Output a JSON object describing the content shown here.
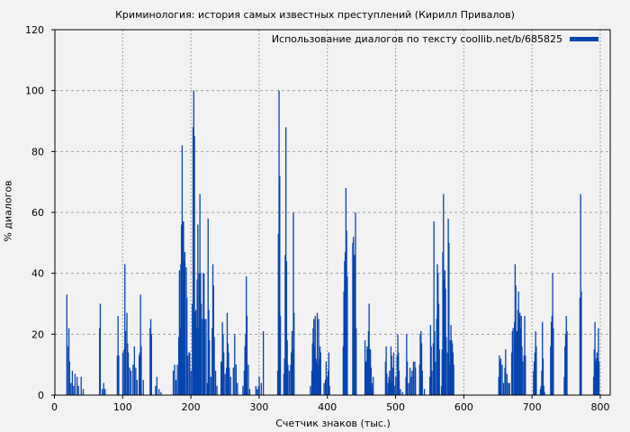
{
  "chart_data": {
    "type": "bar",
    "title": "Криминология: история самых известных преступлений (Кирилл Привалов)",
    "xlabel": "Счетчик знаков (тыс.)",
    "ylabel": "% диалогов",
    "xlim": [
      0,
      820
    ],
    "ylim": [
      0,
      120
    ],
    "xticks": [
      0,
      100,
      200,
      300,
      400,
      500,
      600,
      700,
      800
    ],
    "yticks": [
      0,
      20,
      40,
      60,
      80,
      100,
      120
    ],
    "grid": true,
    "legend_position": "upper right",
    "series": [
      {
        "name": "Использование диалогов по тексту coollib.net/b/685825",
        "color": "#0644ae",
        "points": [
          [
            18,
            33
          ],
          [
            19,
            16
          ],
          [
            21,
            22
          ],
          [
            22,
            11
          ],
          [
            24,
            4
          ],
          [
            26,
            8
          ],
          [
            28,
            3
          ],
          [
            30,
            7
          ],
          [
            33,
            6
          ],
          [
            35,
            3
          ],
          [
            39,
            6
          ],
          [
            42,
            2
          ],
          [
            66,
            22
          ],
          [
            67,
            30
          ],
          [
            70,
            2
          ],
          [
            72,
            4
          ],
          [
            74,
            2
          ],
          [
            92,
            13
          ],
          [
            93,
            26
          ],
          [
            94,
            13
          ],
          [
            100,
            14
          ],
          [
            102,
            15
          ],
          [
            103,
            43
          ],
          [
            104,
            21
          ],
          [
            106,
            27
          ],
          [
            107,
            17
          ],
          [
            108,
            14
          ],
          [
            110,
            9
          ],
          [
            112,
            8
          ],
          [
            115,
            10
          ],
          [
            117,
            16
          ],
          [
            119,
            9
          ],
          [
            121,
            5
          ],
          [
            124,
            13
          ],
          [
            125,
            14
          ],
          [
            126,
            33
          ],
          [
            127,
            16
          ],
          [
            130,
            5
          ],
          [
            140,
            22
          ],
          [
            141,
            25
          ],
          [
            142,
            20
          ],
          [
            148,
            3
          ],
          [
            150,
            6
          ],
          [
            153,
            2
          ],
          [
            156,
            1
          ],
          [
            174,
            8
          ],
          [
            176,
            10
          ],
          [
            178,
            5
          ],
          [
            180,
            10
          ],
          [
            182,
            19
          ],
          [
            183,
            41
          ],
          [
            184,
            22
          ],
          [
            185,
            43
          ],
          [
            186,
            56
          ],
          [
            187,
            82
          ],
          [
            188,
            57
          ],
          [
            189,
            57
          ],
          [
            190,
            44
          ],
          [
            191,
            47
          ],
          [
            193,
            42
          ],
          [
            194,
            32
          ],
          [
            195,
            13
          ],
          [
            197,
            14
          ],
          [
            198,
            14
          ],
          [
            200,
            8
          ],
          [
            202,
            30
          ],
          [
            203,
            88
          ],
          [
            204,
            100
          ],
          [
            205,
            85
          ],
          [
            206,
            27
          ],
          [
            207,
            28
          ],
          [
            208,
            22
          ],
          [
            209,
            38
          ],
          [
            210,
            56
          ],
          [
            211,
            22
          ],
          [
            212,
            40
          ],
          [
            213,
            66
          ],
          [
            214,
            40
          ],
          [
            215,
            30
          ],
          [
            217,
            25
          ],
          [
            218,
            40
          ],
          [
            219,
            40
          ],
          [
            220,
            25
          ],
          [
            222,
            25
          ],
          [
            224,
            4
          ],
          [
            225,
            58
          ],
          [
            226,
            28
          ],
          [
            227,
            18
          ],
          [
            229,
            6
          ],
          [
            231,
            22
          ],
          [
            232,
            43
          ],
          [
            233,
            36
          ],
          [
            234,
            19
          ],
          [
            236,
            8
          ],
          [
            238,
            3
          ],
          [
            244,
            11
          ],
          [
            245,
            11
          ],
          [
            246,
            24
          ],
          [
            247,
            20
          ],
          [
            248,
            14
          ],
          [
            250,
            7
          ],
          [
            252,
            9
          ],
          [
            253,
            27
          ],
          [
            254,
            17
          ],
          [
            255,
            14
          ],
          [
            256,
            9
          ],
          [
            258,
            6
          ],
          [
            262,
            9
          ],
          [
            264,
            20
          ],
          [
            266,
            10
          ],
          [
            268,
            4
          ],
          [
            276,
            3
          ],
          [
            278,
            8
          ],
          [
            279,
            16
          ],
          [
            280,
            20
          ],
          [
            281,
            39
          ],
          [
            282,
            26
          ],
          [
            284,
            10
          ],
          [
            286,
            2
          ],
          [
            295,
            3
          ],
          [
            297,
            2
          ],
          [
            299,
            3
          ],
          [
            300,
            6
          ],
          [
            303,
            4
          ],
          [
            306,
            21
          ],
          [
            327,
            8
          ],
          [
            328,
            53
          ],
          [
            329,
            100
          ],
          [
            330,
            72
          ],
          [
            331,
            26
          ],
          [
            336,
            7
          ],
          [
            337,
            12
          ],
          [
            338,
            46
          ],
          [
            339,
            88
          ],
          [
            340,
            44
          ],
          [
            341,
            18
          ],
          [
            342,
            10
          ],
          [
            344,
            8
          ],
          [
            346,
            10
          ],
          [
            347,
            14
          ],
          [
            348,
            21
          ],
          [
            349,
            15
          ],
          [
            350,
            60
          ],
          [
            351,
            27
          ],
          [
            375,
            3
          ],
          [
            377,
            8
          ],
          [
            378,
            17
          ],
          [
            379,
            22
          ],
          [
            380,
            25
          ],
          [
            381,
            16
          ],
          [
            382,
            26
          ],
          [
            383,
            12
          ],
          [
            384,
            11
          ],
          [
            385,
            27
          ],
          [
            386,
            10
          ],
          [
            387,
            25
          ],
          [
            388,
            12
          ],
          [
            389,
            16
          ],
          [
            390,
            14
          ],
          [
            395,
            4
          ],
          [
            397,
            5
          ],
          [
            398,
            11
          ],
          [
            399,
            6
          ],
          [
            401,
            8
          ],
          [
            402,
            14
          ],
          [
            403,
            3
          ],
          [
            423,
            16
          ],
          [
            424,
            34
          ],
          [
            425,
            44
          ],
          [
            426,
            47
          ],
          [
            427,
            68
          ],
          [
            428,
            54
          ],
          [
            429,
            39
          ],
          [
            437,
            50
          ],
          [
            438,
            52
          ],
          [
            439,
            46
          ],
          [
            440,
            46
          ],
          [
            441,
            60
          ],
          [
            442,
            22
          ],
          [
            455,
            18
          ],
          [
            456,
            11
          ],
          [
            457,
            11
          ],
          [
            458,
            16
          ],
          [
            459,
            15
          ],
          [
            460,
            21
          ],
          [
            461,
            30
          ],
          [
            462,
            15
          ],
          [
            463,
            15
          ],
          [
            464,
            9
          ],
          [
            465,
            4
          ],
          [
            466,
            2
          ],
          [
            467,
            6
          ],
          [
            485,
            11
          ],
          [
            486,
            16
          ],
          [
            487,
            7
          ],
          [
            489,
            4
          ],
          [
            490,
            6
          ],
          [
            491,
            8
          ],
          [
            492,
            5
          ],
          [
            493,
            16
          ],
          [
            494,
            13
          ],
          [
            495,
            4
          ],
          [
            496,
            9
          ],
          [
            497,
            14
          ],
          [
            498,
            3
          ],
          [
            500,
            6
          ],
          [
            502,
            13
          ],
          [
            503,
            20
          ],
          [
            504,
            14
          ],
          [
            505,
            8
          ],
          [
            507,
            2
          ],
          [
            510,
            1
          ],
          [
            515,
            6
          ],
          [
            516,
            20
          ],
          [
            517,
            11
          ],
          [
            519,
            4
          ],
          [
            521,
            9
          ],
          [
            523,
            6
          ],
          [
            524,
            8
          ],
          [
            526,
            11
          ],
          [
            528,
            11
          ],
          [
            529,
            9
          ],
          [
            535,
            10
          ],
          [
            536,
            20
          ],
          [
            537,
            21
          ],
          [
            538,
            17
          ],
          [
            539,
            8
          ],
          [
            542,
            2
          ],
          [
            550,
            6
          ],
          [
            551,
            23
          ],
          [
            552,
            16
          ],
          [
            553,
            8
          ],
          [
            555,
            17
          ],
          [
            556,
            57
          ],
          [
            557,
            21
          ],
          [
            558,
            11
          ],
          [
            560,
            25
          ],
          [
            561,
            43
          ],
          [
            562,
            40
          ],
          [
            563,
            30
          ],
          [
            564,
            15
          ],
          [
            567,
            3
          ],
          [
            568,
            15
          ],
          [
            569,
            47
          ],
          [
            570,
            66
          ],
          [
            571,
            38
          ],
          [
            572,
            41
          ],
          [
            573,
            35
          ],
          [
            574,
            19
          ],
          [
            576,
            14
          ],
          [
            577,
            58
          ],
          [
            578,
            50
          ],
          [
            579,
            10
          ],
          [
            580,
            18
          ],
          [
            581,
            23
          ],
          [
            582,
            18
          ],
          [
            583,
            17
          ],
          [
            584,
            14
          ],
          [
            585,
            10
          ],
          [
            651,
            6
          ],
          [
            652,
            13
          ],
          [
            653,
            11
          ],
          [
            654,
            12
          ],
          [
            656,
            10
          ],
          [
            658,
            4
          ],
          [
            660,
            9
          ],
          [
            661,
            15
          ],
          [
            663,
            7
          ],
          [
            665,
            4
          ],
          [
            667,
            4
          ],
          [
            670,
            14
          ],
          [
            671,
            21
          ],
          [
            672,
            22
          ],
          [
            674,
            24
          ],
          [
            675,
            43
          ],
          [
            676,
            36
          ],
          [
            677,
            21
          ],
          [
            678,
            21
          ],
          [
            679,
            28
          ],
          [
            680,
            34
          ],
          [
            681,
            25
          ],
          [
            682,
            27
          ],
          [
            683,
            22
          ],
          [
            684,
            26
          ],
          [
            685,
            16
          ],
          [
            686,
            11
          ],
          [
            688,
            13
          ],
          [
            689,
            26
          ],
          [
            690,
            13
          ],
          [
            702,
            8
          ],
          [
            703,
            11
          ],
          [
            704,
            14
          ],
          [
            705,
            21
          ],
          [
            706,
            16
          ],
          [
            712,
            2
          ],
          [
            713,
            3
          ],
          [
            714,
            8
          ],
          [
            715,
            24
          ],
          [
            716,
            12
          ],
          [
            717,
            3
          ],
          [
            718,
            1
          ],
          [
            727,
            16
          ],
          [
            728,
            24
          ],
          [
            729,
            26
          ],
          [
            730,
            40
          ],
          [
            731,
            22
          ],
          [
            747,
            6
          ],
          [
            748,
            16
          ],
          [
            749,
            20
          ],
          [
            750,
            26
          ],
          [
            751,
            21
          ],
          [
            770,
            32
          ],
          [
            771,
            66
          ],
          [
            772,
            34
          ],
          [
            790,
            6
          ],
          [
            791,
            15
          ],
          [
            792,
            24
          ],
          [
            793,
            11
          ],
          [
            794,
            12
          ],
          [
            795,
            14
          ],
          [
            796,
            12
          ],
          [
            797,
            22
          ],
          [
            798,
            11
          ]
        ]
      }
    ]
  },
  "ui": {
    "title": "Криминология: история самых известных преступлений (Кирилл Привалов)",
    "xlabel": "Счетчик знаков (тыс.)",
    "ylabel": "% диалогов",
    "legend_label": "Использование диалогов по тексту coollib.net/b/685825",
    "bar_color": "#0644ae"
  }
}
